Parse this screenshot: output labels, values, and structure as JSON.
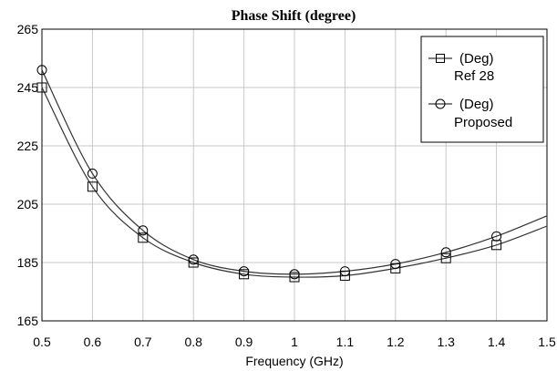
{
  "chart_data": {
    "type": "line",
    "title": "Phase Shift (degree)",
    "xlabel": "Frequency (GHz)",
    "ylabel": "",
    "xlim": [
      0.5,
      1.5
    ],
    "ylim": [
      165,
      265
    ],
    "xticks": [
      "0.5",
      "0.6",
      "0.7",
      "0.8",
      "0.9",
      "1",
      "1.1",
      "1.2",
      "1.3",
      "1.4",
      "1.5"
    ],
    "yticks": [
      "165",
      "185",
      "205",
      "225",
      "245",
      "265"
    ],
    "grid": true,
    "legend_position": "top-right",
    "series": [
      {
        "name_line1": "(Deg)",
        "name_line2": "Ref 28",
        "marker": "square",
        "color": "#333333",
        "x": [
          0.5,
          0.6,
          0.7,
          0.8,
          0.9,
          1.0,
          1.1,
          1.2,
          1.3,
          1.4,
          1.5
        ],
        "y": [
          245,
          211,
          193.5,
          185,
          181,
          180,
          180.5,
          183,
          186.5,
          191,
          197.5
        ]
      },
      {
        "name_line1": "(Deg)",
        "name_line2": "Proposed",
        "marker": "circle",
        "color": "#333333",
        "x": [
          0.5,
          0.6,
          0.7,
          0.8,
          0.9,
          1.0,
          1.1,
          1.2,
          1.3,
          1.4,
          1.5
        ],
        "y": [
          251,
          215.5,
          196,
          186,
          182,
          181,
          182,
          184.5,
          188.5,
          194,
          201
        ]
      }
    ]
  }
}
